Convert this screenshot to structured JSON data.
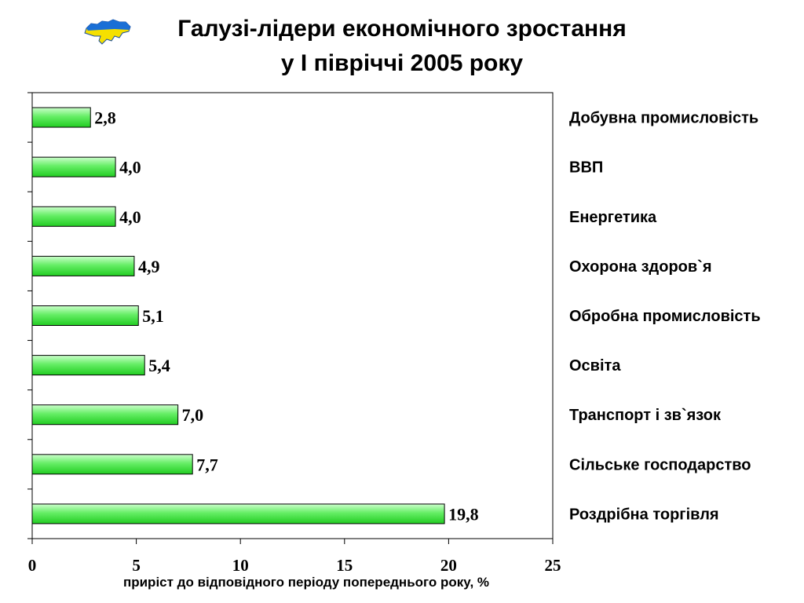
{
  "header": {
    "title_line1": "Галузі-лідери економічного зростання",
    "title_line2": "у І півріччі 2005 року",
    "logo_icon": "ukraine-map-icon"
  },
  "colors": {
    "bar_light": "#ccffcc",
    "bar_mid": "#66ee66",
    "bar_dark": "#22cc22",
    "bar_border": "#000000",
    "map_blue": "#1a6fd6",
    "map_yellow": "#f5e000"
  },
  "chart_data": {
    "type": "bar",
    "orientation": "horizontal",
    "title": "Галузі-лідери економічного зростання у І півріччі 2005 року",
    "xlabel": "приріст до відповідного періоду попереднього року, %",
    "ylabel": "",
    "xlim": [
      0,
      25
    ],
    "xticks": [
      0,
      5,
      10,
      15,
      20,
      25
    ],
    "xtick_labels": [
      "0",
      "5",
      "10",
      "15",
      "20",
      "25"
    ],
    "grid": false,
    "legend": "none",
    "categories": [
      "Добувна промисловість",
      "ВВП",
      "Енергетика",
      "Охорона здоров`я",
      "Обробна промисловість",
      "Освіта",
      "Транспорт і зв`язок",
      "Сільське господарство",
      "Роздрібна торгівля"
    ],
    "values": [
      2.8,
      4.0,
      4.0,
      4.9,
      5.1,
      5.4,
      7.0,
      7.7,
      19.8
    ],
    "value_labels": [
      "2,8",
      "4,0",
      "4,0",
      "4,9",
      "5,1",
      "5,4",
      "7,0",
      "7,7",
      "19,8"
    ]
  }
}
